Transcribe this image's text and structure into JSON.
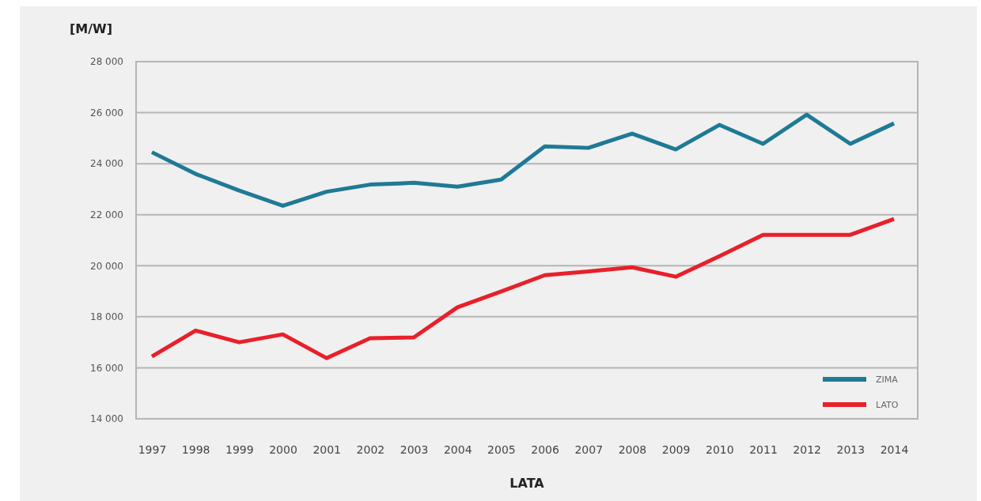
{
  "chart_data": {
    "type": "line",
    "ylabel": "[M/W]",
    "xlabel": "LATA",
    "categories": [
      "1997",
      "1998",
      "1999",
      "2000",
      "2001",
      "2002",
      "2003",
      "2004",
      "2005",
      "2006",
      "2007",
      "2008",
      "2009",
      "2010",
      "2011",
      "2012",
      "2013",
      "2014"
    ],
    "series": [
      {
        "name": "ZIMA",
        "color": "#1f7a95",
        "values": [
          24450,
          23600,
          22950,
          22350,
          22900,
          23180,
          23250,
          23100,
          23380,
          24680,
          24620,
          25180,
          24560,
          25520,
          24780,
          25920,
          24780,
          25580
        ]
      },
      {
        "name": "LATO",
        "color": "#e8202a",
        "values": [
          16440,
          17460,
          17000,
          17310,
          16380,
          17160,
          17190,
          18370,
          18990,
          19630,
          19780,
          19940,
          19570,
          20370,
          21210,
          21210,
          21210,
          21830
        ]
      }
    ],
    "ylim": [
      14000,
      28000
    ],
    "yticks": [
      {
        "value": 14000,
        "label": "14 000"
      },
      {
        "value": 16000,
        "label": "16 000"
      },
      {
        "value": 18000,
        "label": "18 000"
      },
      {
        "value": 20000,
        "label": "20 000"
      },
      {
        "value": 22000,
        "label": "22 000"
      },
      {
        "value": 24000,
        "label": "24 000"
      },
      {
        "value": 26000,
        "label": "26 000"
      },
      {
        "value": 28000,
        "label": "28 000"
      }
    ],
    "grid": "y",
    "legend": "bottom right",
    "marker": "none",
    "line_style": "solid"
  }
}
